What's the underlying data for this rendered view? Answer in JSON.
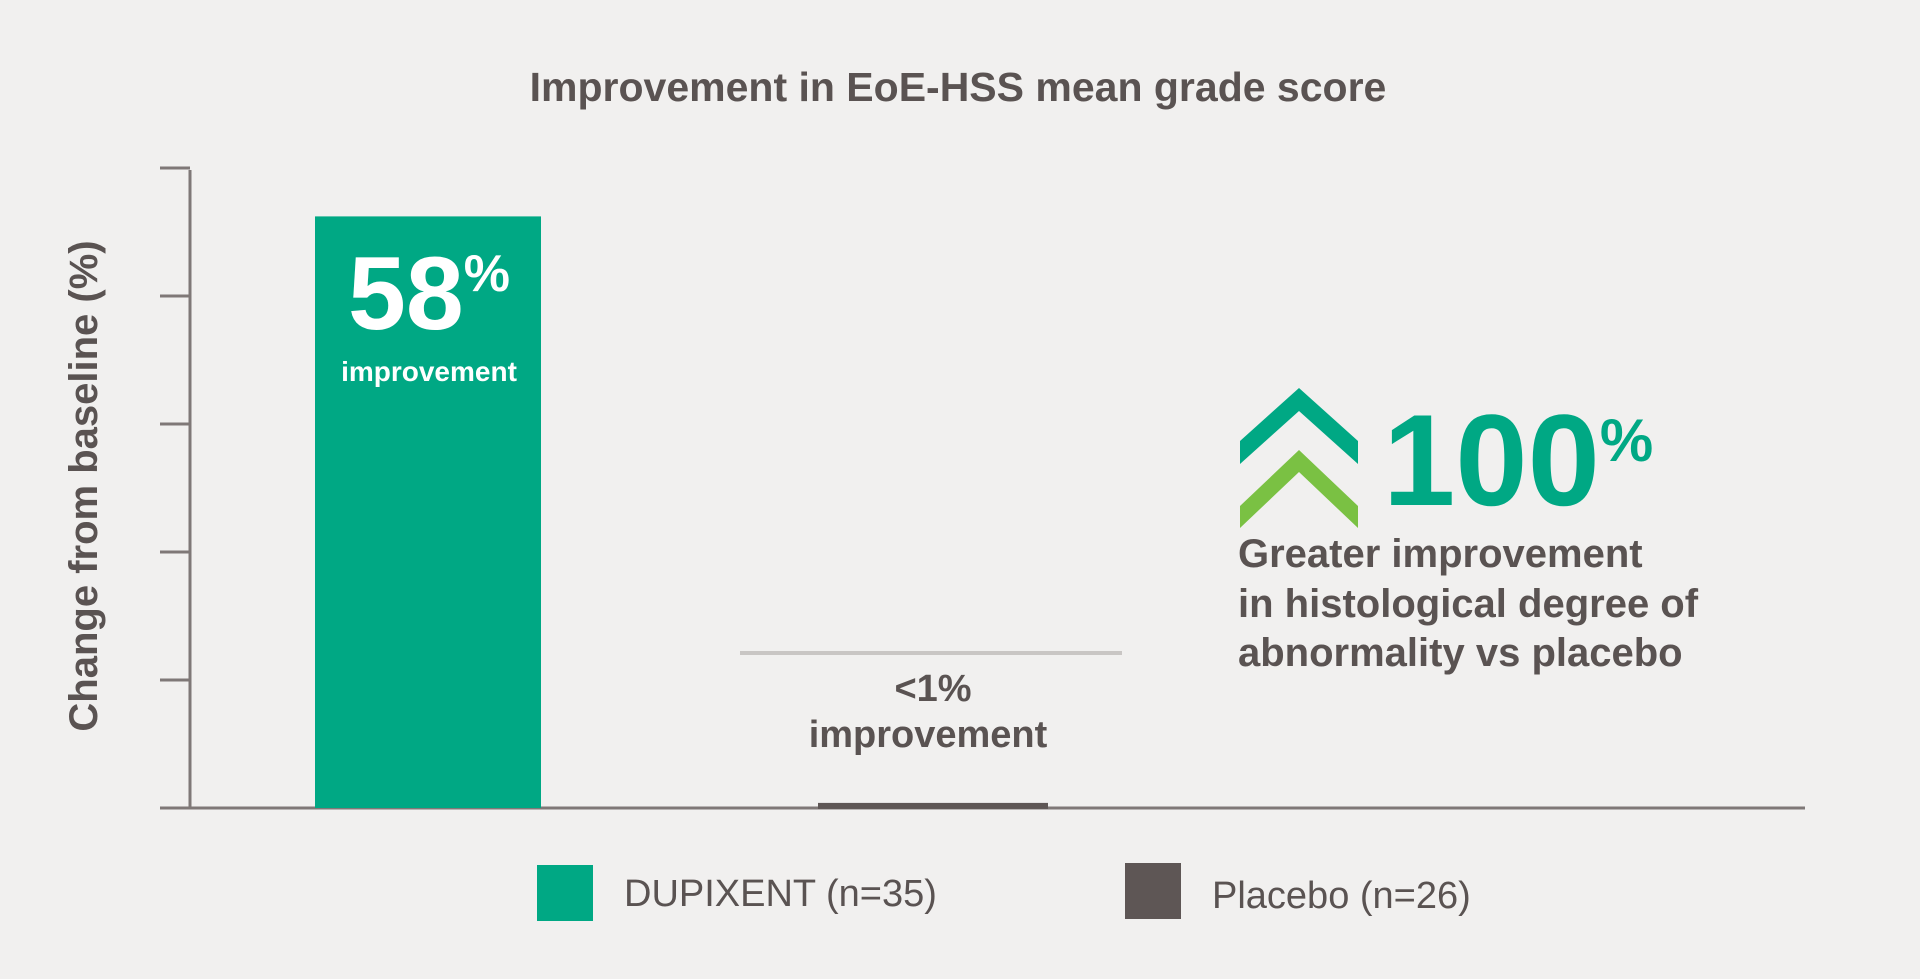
{
  "chart_data": {
    "type": "bar",
    "title": "Improvement in EoE-HSS mean grade score",
    "ylabel": "Change from baseline (%)",
    "xlabel": "",
    "ylim": [
      0,
      60
    ],
    "grid": false,
    "legend_position": "bottom",
    "series": [
      {
        "name": "DUPIXENT (n=35)",
        "value": 58,
        "color": "#00a884",
        "label_value": "58",
        "label_unit": "%",
        "label_text": "improvement"
      },
      {
        "name": "Placebo (n=26)",
        "value": 0.5,
        "color": "#5e5655",
        "label_line1": "<1%",
        "label_line2": "improvement"
      }
    ],
    "callout": {
      "value": "100",
      "unit": "%",
      "lines": [
        "Greater improvement",
        "in histological degree of",
        "abnormality vs placebo"
      ],
      "icon": "double-chevron-up-icon",
      "icon_colors": [
        "#00a884",
        "#7ac143"
      ]
    }
  }
}
